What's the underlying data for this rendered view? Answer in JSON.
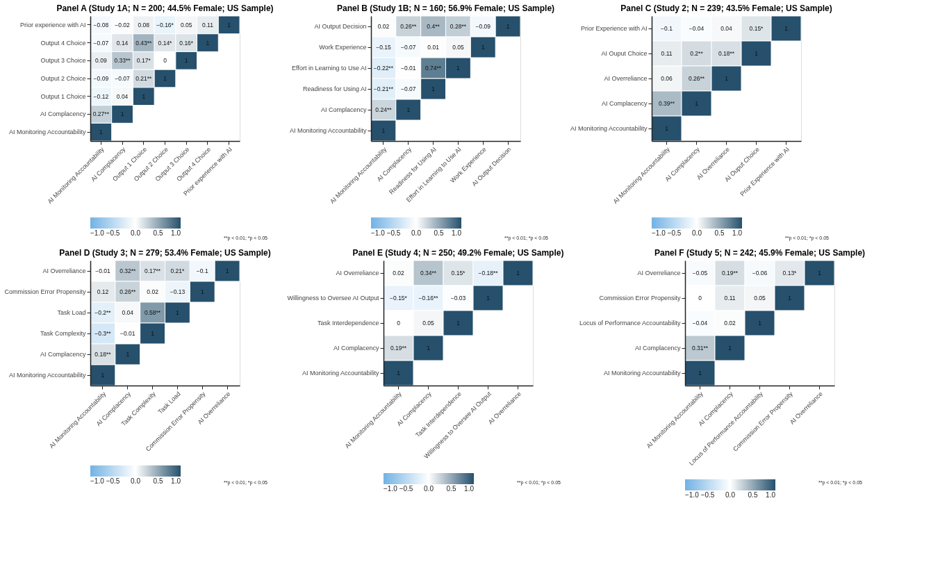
{
  "chart_data": [
    {
      "type": "heatmap",
      "title": "Panel A (Study 1A; N = 200; 44.5% Female; US Sample)",
      "categories": [
        "AI Monitoring Accountability",
        "AI Complacency",
        "Output 1 Choice",
        "Output 2 Choice",
        "Output 3 Choice",
        "Output 4 Choice",
        "Prior experience with AI"
      ],
      "y_categories": [
        "Prior experience with AI",
        "Output 4 Choice",
        "Output 3 Choice",
        "Output 2 Choice",
        "Output 1 Choice",
        "AI Complacency",
        "AI Monitoring Accountability"
      ],
      "cells": [
        [
          -0.08,
          -0.02,
          0.08,
          -0.16,
          0.05,
          0.11,
          1
        ],
        [
          -0.07,
          0.14,
          0.43,
          0.14,
          0.16,
          1,
          null
        ],
        [
          0.09,
          0.33,
          0.17,
          0,
          1,
          null,
          null
        ],
        [
          -0.09,
          -0.07,
          0.21,
          1,
          null,
          null,
          null
        ],
        [
          -0.12,
          0.04,
          1,
          null,
          null,
          null,
          null
        ],
        [
          0.27,
          1,
          null,
          null,
          null,
          null,
          null
        ],
        [
          1,
          null,
          null,
          null,
          null,
          null,
          null
        ]
      ],
      "cell_labels": [
        [
          "−0.08",
          "−0.02",
          "0.08",
          "−0.16*",
          "0.05",
          "0.11",
          "1"
        ],
        [
          "−0.07",
          "0.14",
          "0.43**",
          "0.14*",
          "0.16*",
          "1",
          null
        ],
        [
          "0.09",
          "0.33**",
          "0.17*",
          "0",
          "1",
          null,
          null
        ],
        [
          "−0.09",
          "−0.07",
          "0.21**",
          "1",
          null,
          null,
          null
        ],
        [
          "−0.12",
          "0.04",
          "1",
          null,
          null,
          null,
          null
        ],
        [
          "0.27**",
          "1",
          null,
          null,
          null,
          null,
          null
        ],
        [
          "1",
          null,
          null,
          null,
          null,
          null,
          null
        ]
      ],
      "clim": [
        -1,
        1
      ],
      "cticks": [
        {
          "value": -1,
          "label": "−1.0"
        },
        {
          "value": -0.5,
          "label": "−0.5"
        },
        {
          "value": 0,
          "label": "0.0"
        },
        {
          "value": 0.5,
          "label": "0.5"
        },
        {
          "value": 1,
          "label": "1.0"
        }
      ],
      "annotations": [
        "**p < 0.01; *p < 0.05"
      ]
    },
    {
      "type": "heatmap",
      "title": "Panel B (Study 1B; N = 160; 56.9% Female; US Sample)",
      "categories": [
        "AI Monitoring Accountability",
        "AI Complacency",
        "Readiness for Using AI",
        "Effort in Learning to Use AI",
        "Work Experience",
        "AI Output Decision"
      ],
      "y_categories": [
        "AI Output Decision",
        "Work Experience",
        "Effort in Learning to Use AI",
        "Readiness for Using AI",
        "AI Complacency",
        "AI Monitoring Accountability"
      ],
      "cells": [
        [
          0.02,
          0.26,
          0.4,
          0.28,
          -0.09,
          1
        ],
        [
          -0.15,
          -0.07,
          0.01,
          0.05,
          1,
          null
        ],
        [
          -0.22,
          -0.01,
          0.74,
          1,
          null,
          null
        ],
        [
          -0.21,
          -0.07,
          1,
          null,
          null,
          null
        ],
        [
          0.24,
          1,
          null,
          null,
          null,
          null
        ],
        [
          1,
          null,
          null,
          null,
          null,
          null
        ]
      ],
      "cell_labels": [
        [
          "0.02",
          "0.26**",
          "0.4**",
          "0.28**",
          "−0.09",
          "1"
        ],
        [
          "−0.15",
          "−0.07",
          "0.01",
          "0.05",
          "1",
          null
        ],
        [
          "−0.22**",
          "−0.01",
          "0.74**",
          "1",
          null,
          null
        ],
        [
          "−0.21**",
          "−0.07",
          "1",
          null,
          null,
          null
        ],
        [
          "0.24**",
          "1",
          null,
          null,
          null,
          null
        ],
        [
          "1",
          null,
          null,
          null,
          null,
          null
        ]
      ],
      "clim": [
        -1,
        1
      ],
      "cticks": [
        {
          "value": -1,
          "label": "−1.0"
        },
        {
          "value": -0.5,
          "label": "−0.5"
        },
        {
          "value": 0,
          "label": "0.0"
        },
        {
          "value": 0.5,
          "label": "0.5"
        },
        {
          "value": 1,
          "label": "1.0"
        }
      ],
      "annotations": [
        "**p < 0.01; *p < 0.05"
      ]
    },
    {
      "type": "heatmap",
      "title": "Panel C (Study 2; N = 239; 43.5% Female; US Sample)",
      "categories": [
        "AI Monitoring Accountability",
        "AI Complacency",
        "AI Overreliance",
        "AI Ouput Choice",
        "Prior Experience with AI"
      ],
      "y_categories": [
        "Prior Experience with AI",
        "AI Ouput Choice",
        "AI Overreliance",
        "AI Complacency",
        "AI Monitoring Accountability"
      ],
      "cells": [
        [
          -0.1,
          -0.04,
          0.04,
          0.15,
          1
        ],
        [
          0.11,
          0.2,
          0.18,
          1,
          null
        ],
        [
          0.06,
          0.26,
          1,
          null,
          null
        ],
        [
          0.39,
          1,
          null,
          null,
          null
        ],
        [
          1,
          null,
          null,
          null,
          null
        ]
      ],
      "cell_labels": [
        [
          "−0.1",
          "−0.04",
          "0.04",
          "0.15*",
          "1"
        ],
        [
          "0.11",
          "0.2**",
          "0.18**",
          "1",
          null
        ],
        [
          "0.06",
          "0.26**",
          "1",
          null,
          null
        ],
        [
          "0.39**",
          "1",
          null,
          null,
          null
        ],
        [
          "1",
          null,
          null,
          null,
          null
        ]
      ],
      "clim": [
        -1,
        1
      ],
      "cticks": [
        {
          "value": -1,
          "label": "−1.0"
        },
        {
          "value": -0.5,
          "label": "−0.5"
        },
        {
          "value": 0,
          "label": "0.0"
        },
        {
          "value": 0.5,
          "label": "0.5"
        },
        {
          "value": 1,
          "label": "1.0"
        }
      ],
      "annotations": [
        "**p < 0.01; *p < 0.05"
      ]
    },
    {
      "type": "heatmap",
      "title": "Panel D (Study 3; N = 279; 53.4% Female; US Sample)",
      "categories": [
        "AI Monitoring Accountability",
        "AI Complacency",
        "Task Complexity",
        "Task Load",
        "Commission Error Propensity",
        "AI Overreliance"
      ],
      "y_categories": [
        "AI Overreliance",
        "Commission Error Propensity",
        "Task Load",
        "Task Complexity",
        "AI Complacency",
        "AI Monitoring Accountability"
      ],
      "cells": [
        [
          -0.01,
          0.32,
          0.17,
          0.21,
          -0.1,
          1
        ],
        [
          0.12,
          0.26,
          0.02,
          -0.13,
          1,
          null
        ],
        [
          -0.2,
          0.04,
          0.58,
          1,
          null,
          null
        ],
        [
          -0.3,
          -0.01,
          1,
          null,
          null,
          null
        ],
        [
          0.18,
          1,
          null,
          null,
          null,
          null
        ],
        [
          1,
          null,
          null,
          null,
          null,
          null
        ]
      ],
      "cell_labels": [
        [
          "−0.01",
          "0.32**",
          "0.17**",
          "0.21*",
          "−0.1",
          "1"
        ],
        [
          "0.12",
          "0.26**",
          "0.02",
          "−0.13",
          "1",
          null
        ],
        [
          "−0.2**",
          "0.04",
          "0.58**",
          "1",
          null,
          null
        ],
        [
          "−0.3**",
          "−0.01",
          "1",
          null,
          null,
          null
        ],
        [
          "0.18**",
          "1",
          null,
          null,
          null,
          null
        ],
        [
          "1",
          null,
          null,
          null,
          null,
          null
        ]
      ],
      "clim": [
        -1,
        1
      ],
      "cticks": [
        {
          "value": -1,
          "label": "−1.0"
        },
        {
          "value": -0.5,
          "label": "−0.5"
        },
        {
          "value": 0,
          "label": "0.0"
        },
        {
          "value": 0.5,
          "label": "0.5"
        },
        {
          "value": 1,
          "label": "1.0"
        }
      ],
      "annotations": [
        "**p < 0.01; *p < 0.05"
      ]
    },
    {
      "type": "heatmap",
      "title": "Panel E (Study 4; N = 250; 49.2% Female; US Sample)",
      "categories": [
        "AI Monitoring Accountability",
        "AI Complacency",
        "Task Interdependence",
        "Willingness to Oversee AI Output",
        "AI Overreliance"
      ],
      "y_categories": [
        "AI Overreliance",
        "Willingness to Oversee AI Output",
        "Task Interdependence",
        "AI Complacency",
        "AI Monitoring Accountability"
      ],
      "cells": [
        [
          0.02,
          0.34,
          0.15,
          -0.18,
          1
        ],
        [
          -0.15,
          -0.16,
          -0.03,
          1,
          null
        ],
        [
          0,
          0.05,
          1,
          null,
          null
        ],
        [
          0.19,
          1,
          null,
          null,
          null
        ],
        [
          1,
          null,
          null,
          null,
          null
        ]
      ],
      "cell_labels": [
        [
          "0.02",
          "0.34**",
          "0.15*",
          "−0.18**",
          "1"
        ],
        [
          "−0.15*",
          "−0.16**",
          "−0.03",
          "1",
          null
        ],
        [
          "0",
          "0.05",
          "1",
          null,
          null
        ],
        [
          "0.19**",
          "1",
          null,
          null,
          null
        ],
        [
          "1",
          null,
          null,
          null,
          null
        ]
      ],
      "clim": [
        -1,
        1
      ],
      "cticks": [
        {
          "value": -1,
          "label": "−1.0"
        },
        {
          "value": -0.5,
          "label": "−0.5"
        },
        {
          "value": 0,
          "label": "0.0"
        },
        {
          "value": 0.5,
          "label": "0.5"
        },
        {
          "value": 1,
          "label": "1.0"
        }
      ],
      "annotations": [
        "**p < 0.01; *p < 0.05"
      ]
    },
    {
      "type": "heatmap",
      "title": "Panel F (Study 5; N = 242; 45.9% Female; US Sample)",
      "categories": [
        "AI Monitoring Accountability",
        "AI Complacency",
        "Locus of Performance Accountability",
        "Commission Error Propensity",
        "AI Overreliance"
      ],
      "y_categories": [
        "AI Overreliance",
        "Commission Error Propensity",
        "Locus of Performance Accountability",
        "AI Complacency",
        "AI Monitoring Accountability"
      ],
      "cells": [
        [
          -0.05,
          0.19,
          -0.06,
          0.13,
          1
        ],
        [
          0,
          0.11,
          0.05,
          1,
          null
        ],
        [
          -0.04,
          0.02,
          1,
          null,
          null
        ],
        [
          0.31,
          1,
          null,
          null,
          null
        ],
        [
          1,
          null,
          null,
          null,
          null
        ]
      ],
      "cell_labels": [
        [
          "−0.05",
          "0.19**",
          "−0.06",
          "0.13*",
          "1"
        ],
        [
          "0",
          "0.11",
          "0.05",
          "1",
          null
        ],
        [
          "−0.04",
          "0.02",
          "1",
          null,
          null
        ],
        [
          "0.31**",
          "1",
          null,
          null,
          null
        ],
        [
          "1",
          null,
          null,
          null,
          null
        ]
      ],
      "clim": [
        -1,
        1
      ],
      "cticks": [
        {
          "value": -1,
          "label": "−1.0"
        },
        {
          "value": -0.5,
          "label": "−0.5"
        },
        {
          "value": 0,
          "label": "0.0"
        },
        {
          "value": 0.5,
          "label": "0.5"
        },
        {
          "value": 1,
          "label": "1.0"
        }
      ],
      "annotations": [
        "**p < 0.01; *p < 0.05"
      ]
    }
  ]
}
